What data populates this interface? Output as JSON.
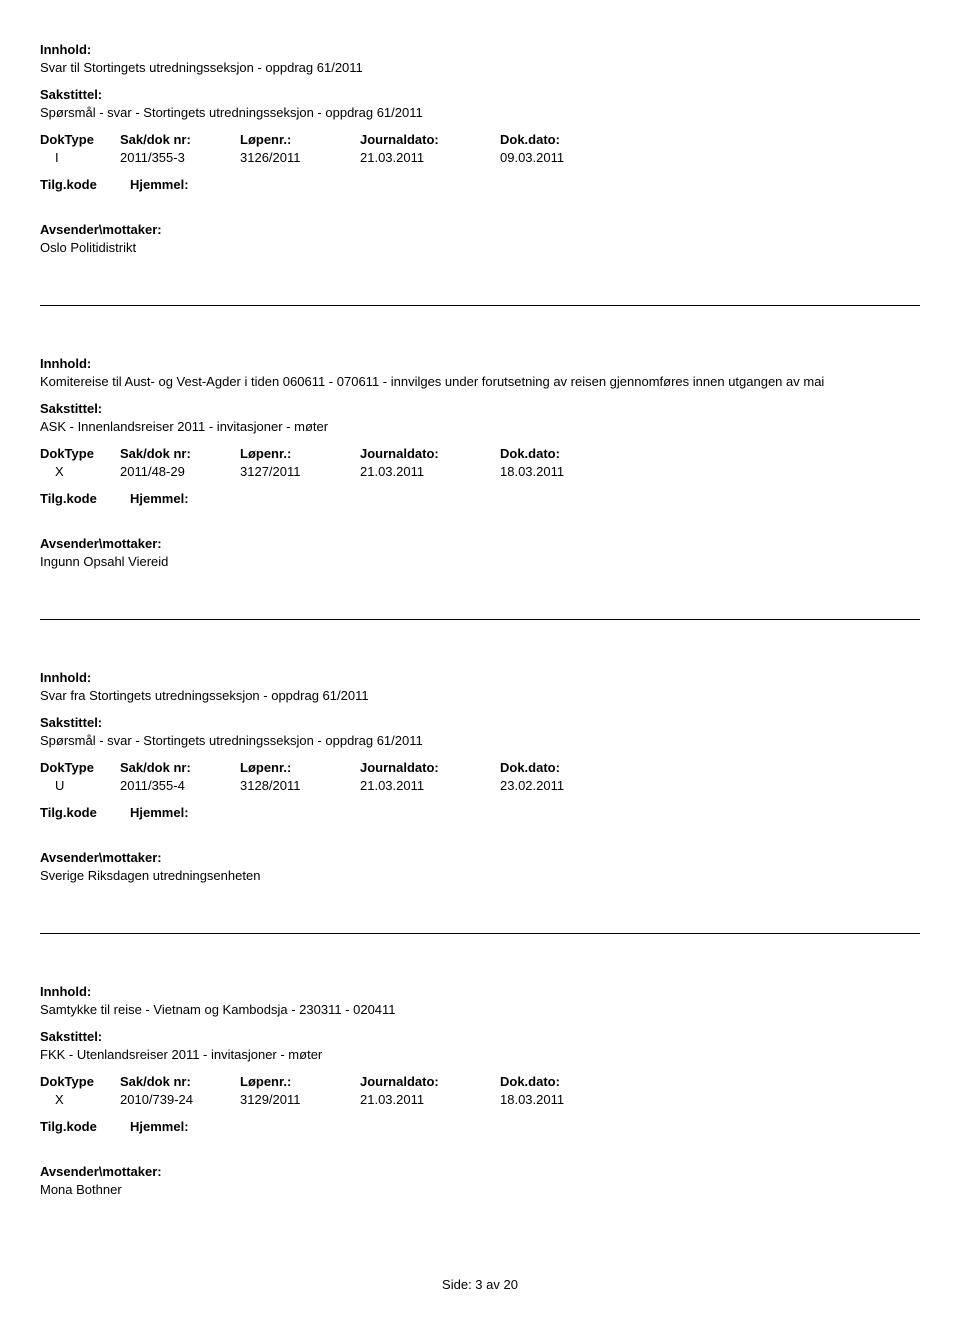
{
  "labels": {
    "innhold": "Innhold:",
    "sakstittel": "Sakstittel:",
    "doktype": "DokType",
    "sakdok": "Sak/dok nr:",
    "lopenr": "Løpenr.:",
    "journaldato": "Journaldato:",
    "dokdato": "Dok.dato:",
    "tilgkode": "Tilg.kode",
    "hjemmel": "Hjemmel:",
    "avsender": "Avsender\\mottaker:"
  },
  "entries": [
    {
      "innhold": "Svar  til Stortingets utredningsseksjon - oppdrag 61/2011",
      "sakstittel": "Spørsmål - svar - Stortingets utredningsseksjon - oppdrag 61/2011",
      "doktype": "I",
      "sakdok": "2011/355-3",
      "lopenr": "3126/2011",
      "journaldato": "21.03.2011",
      "dokdato": "09.03.2011",
      "avsender": "Oslo Politidistrikt"
    },
    {
      "innhold": "Komitereise til Aust- og Vest-Agder i tiden 060611 - 070611 - innvilges under forutsetning av reisen gjennomføres innen utgangen av mai",
      "sakstittel": "ASK - Innenlandsreiser 2011 - invitasjoner - møter",
      "doktype": "X",
      "sakdok": "2011/48-29",
      "lopenr": "3127/2011",
      "journaldato": "21.03.2011",
      "dokdato": "18.03.2011",
      "avsender": "Ingunn Opsahl Viereid"
    },
    {
      "innhold": "Svar  fra Stortingets utredningsseksjon - oppdrag 61/2011",
      "sakstittel": "Spørsmål - svar - Stortingets utredningsseksjon - oppdrag 61/2011",
      "doktype": "U",
      "sakdok": "2011/355-4",
      "lopenr": "3128/2011",
      "journaldato": "21.03.2011",
      "dokdato": "23.02.2011",
      "avsender": "Sverige Riksdagen utredningsenheten"
    },
    {
      "innhold": "Samtykke til reise - Vietnam og Kambodsja - 230311 - 020411",
      "sakstittel": "FKK - Utenlandsreiser 2011 - invitasjoner - møter",
      "doktype": "X",
      "sakdok": "2010/739-24",
      "lopenr": "3129/2011",
      "journaldato": "21.03.2011",
      "dokdato": "18.03.2011",
      "avsender": "Mona Bothner"
    }
  ],
  "footer": "Side: 3 av 20"
}
